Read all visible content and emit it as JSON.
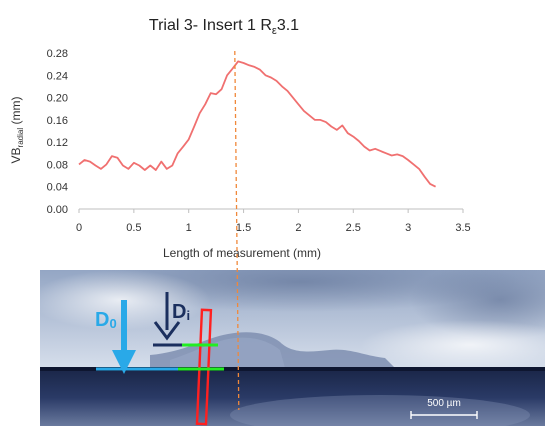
{
  "chart_data": {
    "type": "line",
    "title": {
      "prefix": "Trial 3- Insert 1 R",
      "sub": "ε",
      "suffix": "3.1"
    },
    "xlabel": "Length of measurement (mm)",
    "ylabel": {
      "main": "VB",
      "sub": "radial",
      "unit": " (mm)"
    },
    "xlim": [
      0,
      3.5
    ],
    "ylim": [
      0,
      0.28
    ],
    "xticks": [
      "0",
      "0.5",
      "1",
      "1.5",
      "2",
      "2.5",
      "3",
      "3.5"
    ],
    "yticks": [
      "0.00",
      "0.04",
      "0.08",
      "0.12",
      "0.16",
      "0.20",
      "0.24",
      "0.28"
    ],
    "grid": false,
    "series": [
      {
        "color": "#f07070",
        "x": [
          0.0,
          0.05,
          0.1,
          0.15,
          0.2,
          0.25,
          0.3,
          0.35,
          0.4,
          0.45,
          0.5,
          0.55,
          0.6,
          0.65,
          0.7,
          0.75,
          0.8,
          0.85,
          0.9,
          0.95,
          1.0,
          1.05,
          1.1,
          1.15,
          1.2,
          1.25,
          1.3,
          1.35,
          1.4,
          1.45,
          1.5,
          1.55,
          1.6,
          1.65,
          1.7,
          1.75,
          1.8,
          1.85,
          1.9,
          1.95,
          2.0,
          2.05,
          2.1,
          2.15,
          2.2,
          2.25,
          2.3,
          2.35,
          2.4,
          2.45,
          2.5,
          2.55,
          2.6,
          2.65,
          2.7,
          2.75,
          2.8,
          2.85,
          2.9,
          2.95,
          3.0,
          3.05,
          3.1,
          3.15,
          3.2,
          3.25
        ],
        "y": [
          0.08,
          0.088,
          0.085,
          0.078,
          0.072,
          0.08,
          0.095,
          0.092,
          0.078,
          0.072,
          0.083,
          0.078,
          0.07,
          0.078,
          0.07,
          0.085,
          0.072,
          0.078,
          0.1,
          0.112,
          0.125,
          0.148,
          0.172,
          0.188,
          0.208,
          0.206,
          0.215,
          0.24,
          0.252,
          0.265,
          0.262,
          0.258,
          0.255,
          0.25,
          0.24,
          0.236,
          0.23,
          0.22,
          0.212,
          0.2,
          0.188,
          0.176,
          0.168,
          0.16,
          0.16,
          0.156,
          0.148,
          0.142,
          0.15,
          0.136,
          0.13,
          0.122,
          0.112,
          0.105,
          0.108,
          0.104,
          0.1,
          0.096,
          0.098,
          0.095,
          0.088,
          0.08,
          0.072,
          0.058,
          0.045,
          0.04
        ]
      }
    ],
    "marker_x": 1.42
  },
  "image_panel": {
    "labels": {
      "d0": {
        "main": "D",
        "sub": "0"
      },
      "di": {
        "main": "D",
        "sub": "i"
      }
    },
    "scale_bar_label": "500 µm",
    "colors": {
      "d0": "#29a9e8",
      "di": "#1b2f5e",
      "green_line": "#22ee22",
      "red_box": "#ff2020",
      "dashed_line": "#f0883a"
    }
  }
}
